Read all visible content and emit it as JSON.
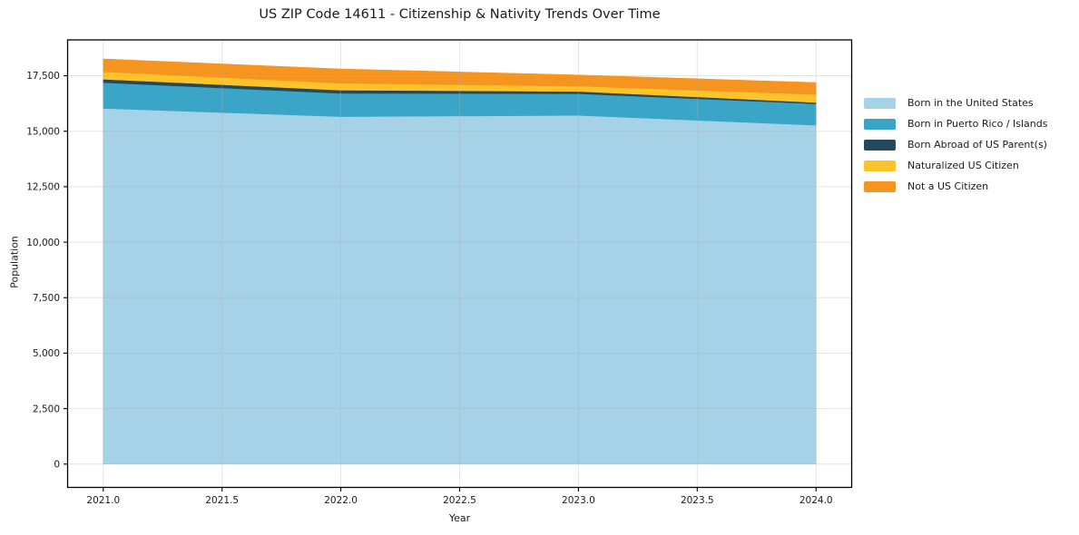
{
  "chart_data": {
    "type": "area",
    "stacked": true,
    "title": "US ZIP Code 14611 - Citizenship & Nativity Trends Over Time",
    "xlabel": "Year",
    "ylabel": "Population",
    "x": [
      2021,
      2022,
      2023,
      2024
    ],
    "xlim": [
      2020.85,
      2024.15
    ],
    "ylim": [
      -1050,
      19115
    ],
    "grid": true,
    "legend_position": "right",
    "x_ticks": [
      {
        "v": 2021.0,
        "label": "2021.0"
      },
      {
        "v": 2021.5,
        "label": "2021.5"
      },
      {
        "v": 2022.0,
        "label": "2022.0"
      },
      {
        "v": 2022.5,
        "label": "2022.5"
      },
      {
        "v": 2023.0,
        "label": "2023.0"
      },
      {
        "v": 2023.5,
        "label": "2023.5"
      },
      {
        "v": 2024.0,
        "label": "2024.0"
      }
    ],
    "y_ticks": [
      {
        "v": 0,
        "label": "0"
      },
      {
        "v": 2500,
        "label": "2,500"
      },
      {
        "v": 5000,
        "label": "5,000"
      },
      {
        "v": 7500,
        "label": "7,500"
      },
      {
        "v": 10000,
        "label": "10,000"
      },
      {
        "v": 12500,
        "label": "12,500"
      },
      {
        "v": 15000,
        "label": "15,000"
      },
      {
        "v": 17500,
        "label": "17,500"
      }
    ],
    "series": [
      {
        "name": "Born in the United States",
        "color": "#a5d2e7",
        "values": [
          16030,
          15660,
          15715,
          15270
        ]
      },
      {
        "name": "Born in Puerto Rico / Islands",
        "color": "#3aa5c6",
        "values": [
          1160,
          1050,
          975,
          965
        ]
      },
      {
        "name": "Born Abroad of US Parent(s)",
        "color": "#24485c",
        "values": [
          150,
          140,
          105,
          60
        ]
      },
      {
        "name": "Naturalized US Citizen",
        "color": "#fcc32b",
        "values": [
          340,
          310,
          235,
          360
        ]
      },
      {
        "name": "Not a US Citizen",
        "color": "#f5941e",
        "values": [
          575,
          645,
          505,
          535
        ]
      }
    ],
    "stacked_totals": [
      18255,
      17805,
      17535,
      17190
    ],
    "colors": {
      "frame": "#000000",
      "gridline": "#b2b2b2",
      "text": "#1a1a1a",
      "background": "#ffffff"
    }
  }
}
